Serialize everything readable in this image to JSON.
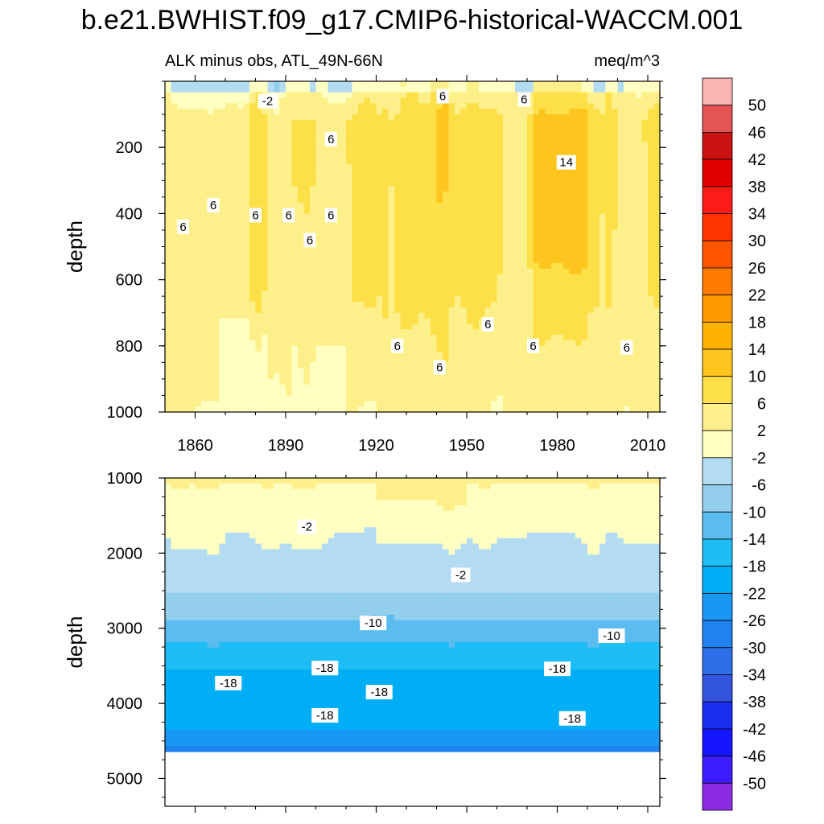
{
  "chart_data": {
    "type": "heatmap",
    "title": "b.e21.BWHIST.f09_g17.CMIP6-historical-WACCM.001",
    "variable_label": "ALK minus obs, ATL_49N-66N",
    "units": "meq/m^3",
    "colorbar": {
      "levels": [
        "50",
        "46",
        "42",
        "38",
        "34",
        "30",
        "26",
        "22",
        "18",
        "14",
        "10",
        "6",
        "2",
        "-2",
        "-6",
        "-10",
        "-14",
        "-18",
        "-22",
        "-26",
        "-30",
        "-34",
        "-38",
        "-42",
        "-46",
        "-50"
      ],
      "colors": [
        "#fbb4b4",
        "#e55454",
        "#cc1111",
        "#e00000",
        "#ff1a1a",
        "#ff3300",
        "#ff5500",
        "#ff7a00",
        "#ff9a00",
        "#ffb300",
        "#fdc51d",
        "#fde047",
        "#fdf08a",
        "#ffffc2",
        "#b3dcf3",
        "#94ceed",
        "#5bbcef",
        "#1ebdf5",
        "#00aef6",
        "#1a97f5",
        "#2081f0",
        "#2e6ee8",
        "#3355dd",
        "#1b2df0",
        "#1515ff",
        "#3d1cff",
        "#8b2be6"
      ]
    },
    "panels": [
      {
        "name": "upper",
        "xlim": [
          1850,
          2014
        ],
        "ylim": [
          1000,
          0
        ],
        "ylabel": "depth",
        "xticks": [
          "1860",
          "1890",
          "1920",
          "1950",
          "1980",
          "2010"
        ],
        "yticks": [
          "200",
          "400",
          "600",
          "800",
          "1000"
        ],
        "contour_labels": [
          {
            "text": "-2",
            "year": 1884,
            "depth": 60
          },
          {
            "text": "6",
            "year": 1942,
            "depth": 45
          },
          {
            "text": "6",
            "year": 1969,
            "depth": 55
          },
          {
            "text": "6",
            "year": 1905,
            "depth": 175
          },
          {
            "text": "14",
            "year": 1983,
            "depth": 245
          },
          {
            "text": "6",
            "year": 1866,
            "depth": 375
          },
          {
            "text": "6",
            "year": 1880,
            "depth": 405
          },
          {
            "text": "6",
            "year": 1891,
            "depth": 405
          },
          {
            "text": "6",
            "year": 1905,
            "depth": 405
          },
          {
            "text": "6",
            "year": 1856,
            "depth": 440
          },
          {
            "text": "6",
            "year": 1898,
            "depth": 480
          },
          {
            "text": "6",
            "year": 1957,
            "depth": 735
          },
          {
            "text": "6",
            "year": 1927,
            "depth": 800
          },
          {
            "text": "6",
            "year": 1972,
            "depth": 800
          },
          {
            "text": "6",
            "year": 2003,
            "depth": 805
          },
          {
            "text": "6",
            "year": 1941,
            "depth": 865
          }
        ]
      },
      {
        "name": "lower",
        "xlim": [
          1850,
          2014
        ],
        "ylim": [
          5370,
          1000
        ],
        "bottom_of_data": 4620,
        "ylabel": "depth",
        "yticks": [
          "1000",
          "2000",
          "3000",
          "4000",
          "5000"
        ],
        "contour_labels": [
          {
            "text": "-2",
            "year": 1897,
            "depth": 1650
          },
          {
            "text": "-2",
            "year": 1948,
            "depth": 2290
          },
          {
            "text": "-10",
            "year": 1919,
            "depth": 2930
          },
          {
            "text": "-10",
            "year": 1998,
            "depth": 3100
          },
          {
            "text": "-18",
            "year": 1903,
            "depth": 3530
          },
          {
            "text": "-18",
            "year": 1980,
            "depth": 3540
          },
          {
            "text": "-18",
            "year": 1871,
            "depth": 3730
          },
          {
            "text": "-18",
            "year": 1921,
            "depth": 3850
          },
          {
            "text": "-18",
            "year": 1903,
            "depth": 4160
          },
          {
            "text": "-18",
            "year": 1985,
            "depth": 4200
          }
        ]
      }
    ]
  }
}
